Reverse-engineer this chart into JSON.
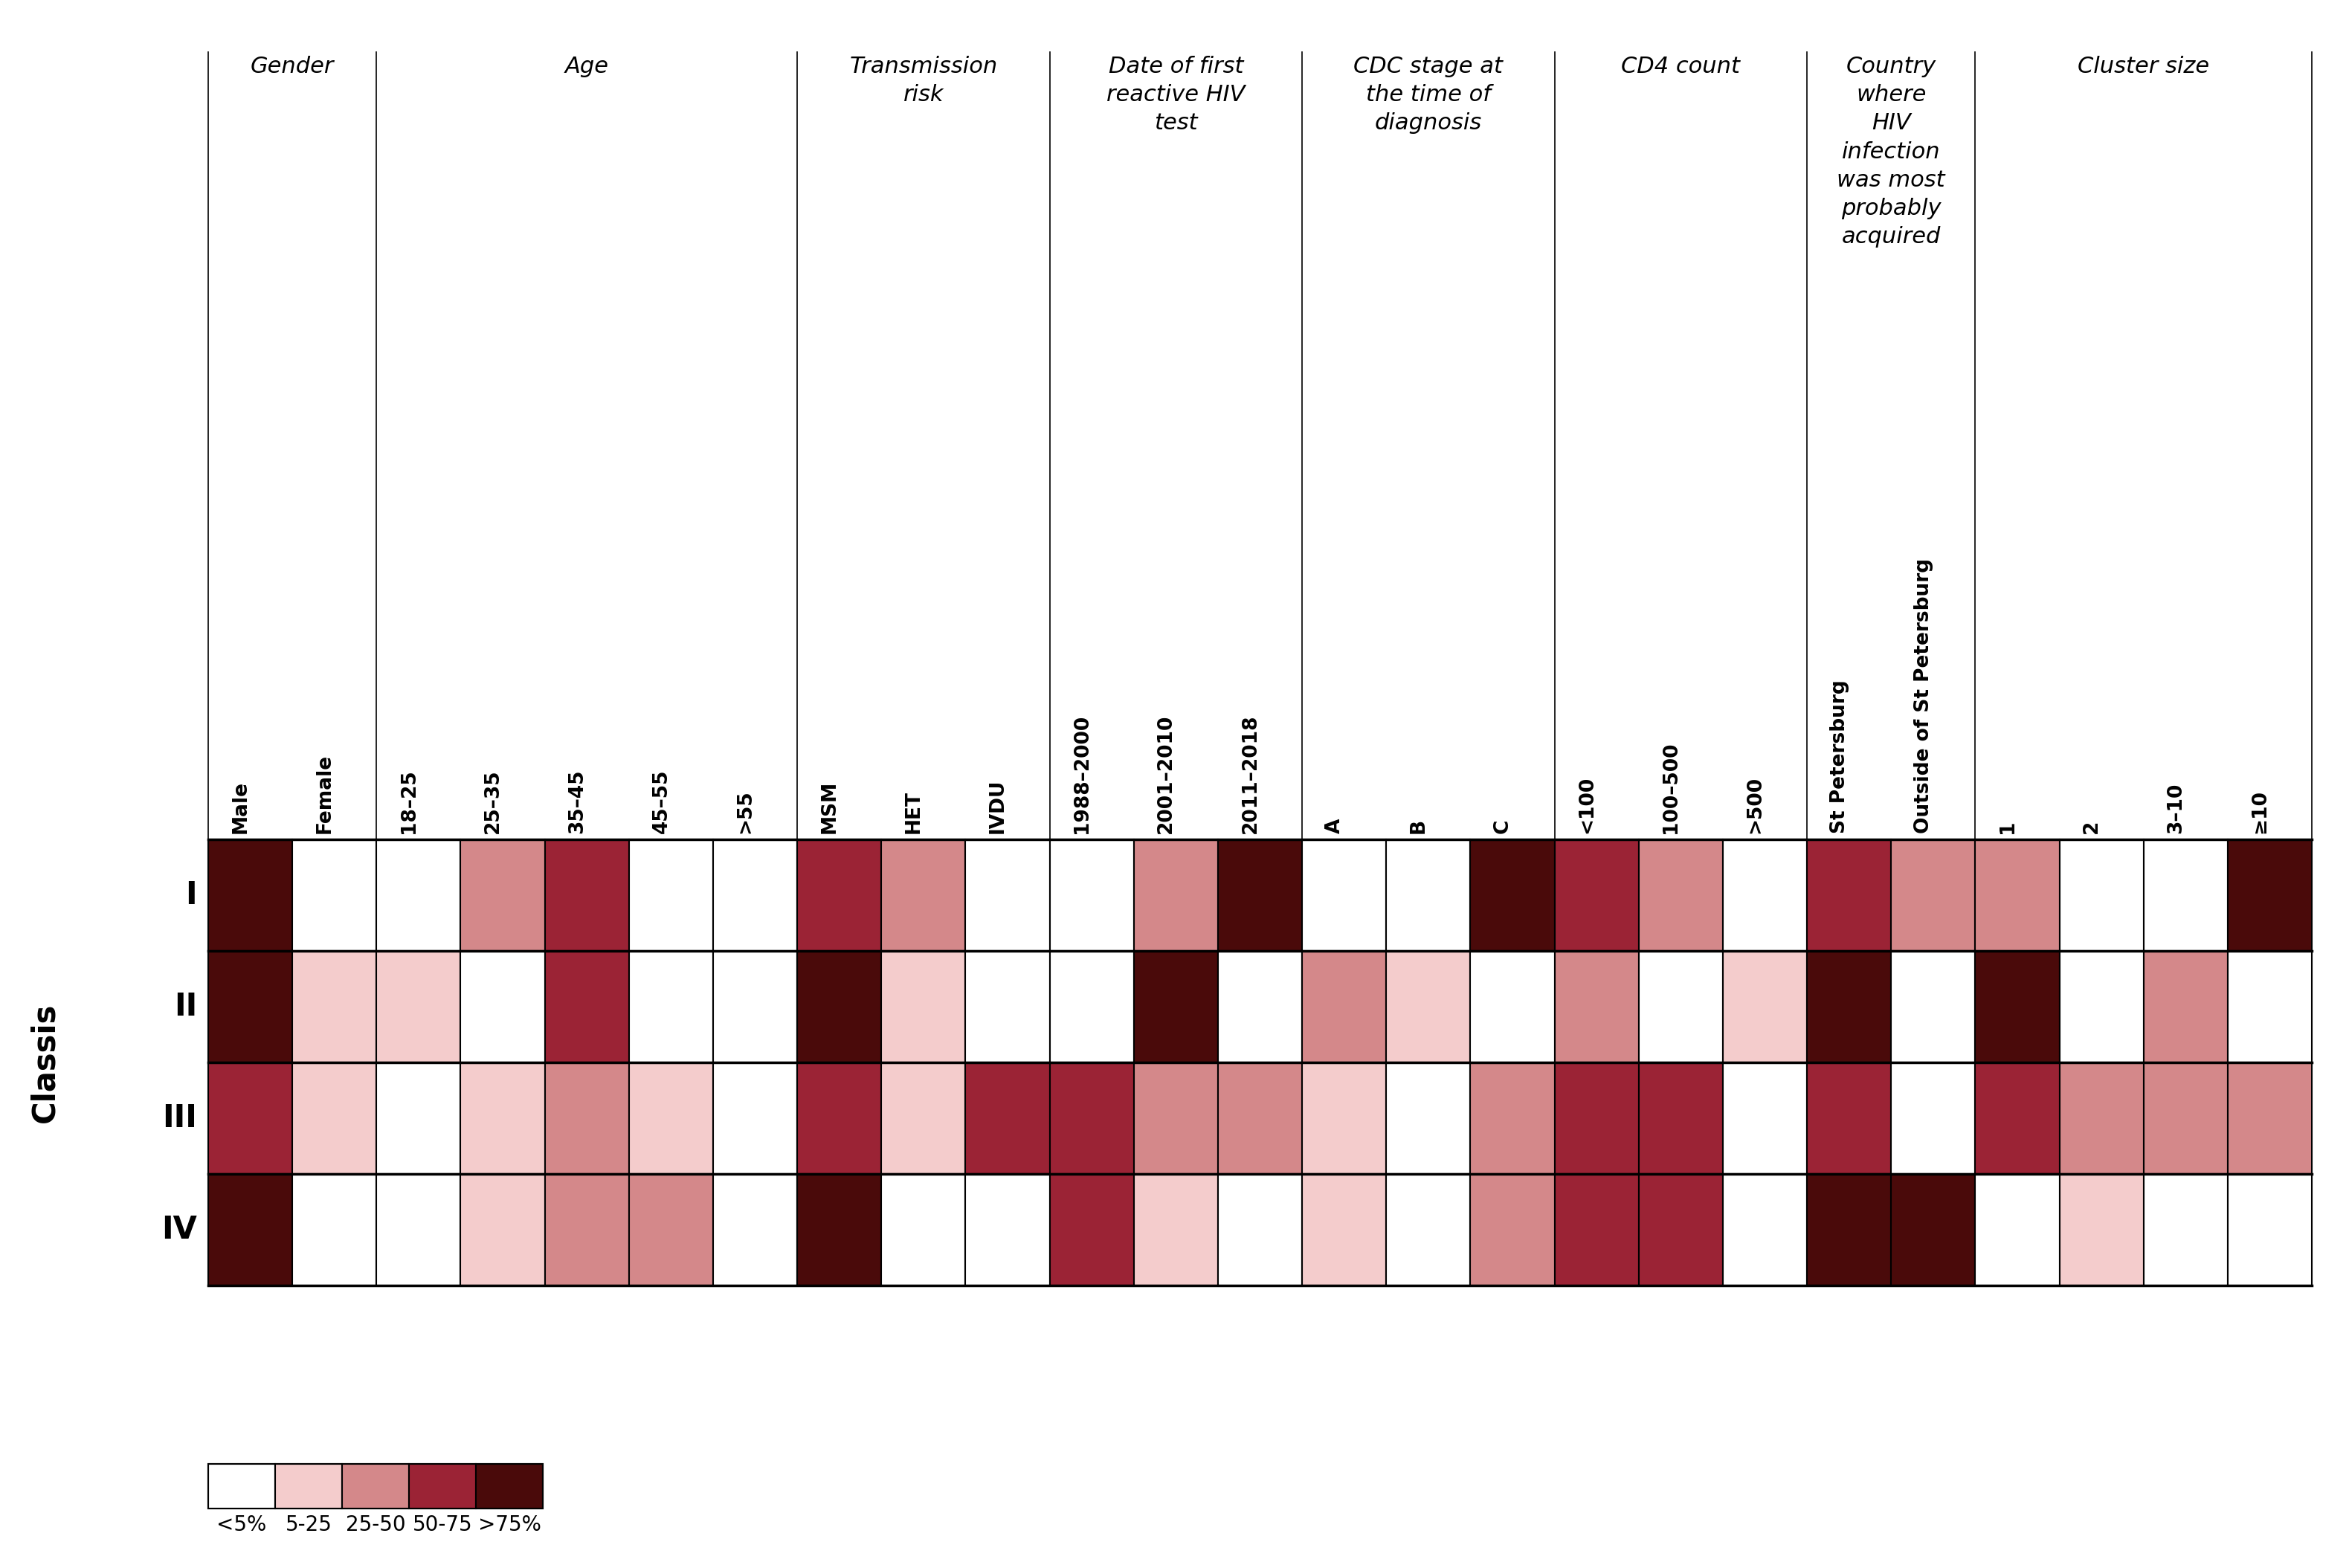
{
  "rows": [
    "I",
    "II",
    "III",
    "IV"
  ],
  "columns": [
    "Male",
    "Female",
    "18–25",
    "25–35",
    "35–45",
    "45–55",
    ">55",
    "MSM",
    "HET",
    "IVDU",
    "1988–2000",
    "2001–2010",
    "2011–2018",
    "A",
    "B",
    "C",
    "<100",
    "100–500",
    ">500",
    "St Petersburg",
    "Outside of St Petersburg",
    "1",
    "2",
    "3–10",
    "≥10"
  ],
  "col_groups": [
    {
      "label": "Gender",
      "start": 0,
      "end": 2
    },
    {
      "label": "Age",
      "start": 2,
      "end": 7
    },
    {
      "label": "Transmission\nrisk",
      "start": 7,
      "end": 10
    },
    {
      "label": "Date of first\nreactive HIV\ntest",
      "start": 10,
      "end": 13
    },
    {
      "label": "CDC stage at\nthe time of\ndiagnosis",
      "start": 13,
      "end": 16
    },
    {
      "label": "CD4 count",
      "start": 16,
      "end": 19
    },
    {
      "label": "Country\nwhere\nHIV\ninfection\nwas most\nprobably\nacquired",
      "start": 19,
      "end": 21
    },
    {
      "label": "Cluster size",
      "start": 21,
      "end": 25
    }
  ],
  "color_levels": [
    "#FFFFFF",
    "#F4CCCC",
    "#D4888A",
    "#9B2335",
    "#4A0A0A"
  ],
  "data": {
    "I": [
      5,
      0,
      0,
      2,
      3,
      0,
      0,
      3,
      2,
      0,
      0,
      2,
      5,
      0,
      0,
      5,
      3,
      2,
      0,
      3,
      2,
      2,
      0,
      0,
      5
    ],
    "II": [
      4,
      1,
      1,
      0,
      3,
      0,
      0,
      4,
      1,
      0,
      0,
      4,
      0,
      2,
      1,
      0,
      2,
      0,
      1,
      5,
      0,
      5,
      0,
      2,
      0
    ],
    "III": [
      3,
      1,
      0,
      1,
      2,
      1,
      0,
      3,
      1,
      3,
      3,
      2,
      2,
      1,
      0,
      2,
      3,
      3,
      0,
      3,
      0,
      3,
      2,
      2,
      2
    ],
    "IV": [
      5,
      0,
      0,
      1,
      2,
      2,
      0,
      5,
      0,
      0,
      3,
      1,
      0,
      1,
      0,
      2,
      3,
      3,
      0,
      5,
      5,
      0,
      1,
      0,
      0
    ]
  },
  "legend_labels": [
    "<5%",
    "5-25",
    "25-50",
    "50-75",
    ">75%"
  ],
  "ylabel": "Classis",
  "background": "#FFFFFF"
}
